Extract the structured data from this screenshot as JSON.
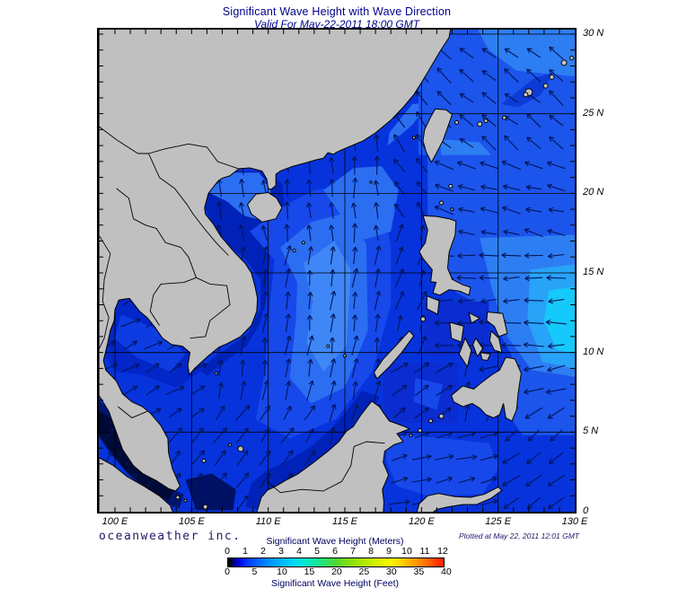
{
  "header": {
    "title": "Significant Wave Height with Wave Direction",
    "subtitle": "Valid For May-22-2011 18:00 GMT"
  },
  "footer": {
    "brand": "oceanweather inc.",
    "plotted": "Plotted at May 22, 2011 12:01 GMT"
  },
  "map": {
    "lat_labels": [
      {
        "value": "30 N",
        "lat": 30
      },
      {
        "value": "25 N",
        "lat": 25
      },
      {
        "value": "20 N",
        "lat": 20
      },
      {
        "value": "15 N",
        "lat": 15
      },
      {
        "value": "10 N",
        "lat": 10
      },
      {
        "value": "5 N",
        "lat": 5
      },
      {
        "value": "0",
        "lat": 0
      }
    ],
    "lon_labels": [
      {
        "value": "100 E",
        "lon": 100
      },
      {
        "value": "105 E",
        "lon": 105
      },
      {
        "value": "110 E",
        "lon": 110
      },
      {
        "value": "115 E",
        "lon": 115
      },
      {
        "value": "120 E",
        "lon": 120
      },
      {
        "value": "125 E",
        "lon": 125
      },
      {
        "value": "130 E",
        "lon": 130
      }
    ],
    "colors": {
      "land": "#c0c0c0",
      "coastline": "#000000",
      "ocean_base": "#0733dc",
      "arrow": "#001559",
      "grid": "#000000"
    },
    "flow_regions": [
      {
        "lon0": 105.3,
        "lon1": 110.2,
        "lat0": 17.2,
        "lat1": 21.8,
        "dir": 352
      },
      {
        "lon0": 117.4,
        "lon1": 121.2,
        "lat0": 17.8,
        "lat1": 21.6,
        "dir": 330
      },
      {
        "lon0": 109.5,
        "lon1": 117.4,
        "lat0": 17.2,
        "lat1": 23.2,
        "dir": 358
      },
      {
        "lon0": 116.0,
        "lon1": 120.8,
        "lat0": 21.6,
        "lat1": 26.0,
        "dir": 322
      },
      {
        "lon0": 119.5,
        "lon1": 130.5,
        "lat0": 22.6,
        "lat1": 30.4,
        "dir": 310
      },
      {
        "lon0": 120.5,
        "lon1": 130.5,
        "lat0": 16.6,
        "lat1": 22.6,
        "dir": 286
      },
      {
        "lon0": 120.8,
        "lon1": 130.5,
        "lat0": 9.6,
        "lat1": 16.6,
        "dir": 268
      },
      {
        "lon0": 124.3,
        "lon1": 130.5,
        "lat0": 6.8,
        "lat1": 9.6,
        "dir": 252
      },
      {
        "lon0": 124.8,
        "lon1": 130.5,
        "lat0": 0.0,
        "lat1": 6.8,
        "dir": 232
      },
      {
        "lon0": 117.3,
        "lon1": 122.6,
        "lat0": 5.4,
        "lat1": 9.6,
        "dir": 55
      },
      {
        "lon0": 117.3,
        "lon1": 124.8,
        "lat0": 0.0,
        "lat1": 5.4,
        "dir": 75
      },
      {
        "lon0": 117.4,
        "lon1": 120.8,
        "lat0": 11.8,
        "lat1": 17.8,
        "dir": 18
      },
      {
        "lon0": 120.8,
        "lon1": 125.5,
        "lat0": 9.6,
        "lat1": 13.2,
        "dir": 45
      },
      {
        "lon0": 98.9,
        "lon1": 105.6,
        "lat0": 5.6,
        "lat1": 13.6,
        "dir": 62
      },
      {
        "lon0": 98.9,
        "lon1": 103.9,
        "lat0": 0.0,
        "lat1": 5.6,
        "dir": 40
      },
      {
        "lon0": 103.9,
        "lon1": 113.3,
        "lat0": 0.0,
        "lat1": 7.2,
        "dir": 35
      },
      {
        "lon0": 108.0,
        "lon1": 118.0,
        "lat0": 7.2,
        "lat1": 17.2,
        "dir": 8
      }
    ],
    "default_dir": 15
  },
  "legend": {
    "meters_label": "Significant Wave Height (Meters)",
    "feet_label": "Significant Wave Height (Feet)",
    "meters_ticks": [
      0,
      1,
      2,
      3,
      4,
      5,
      6,
      7,
      8,
      9,
      10,
      11,
      12
    ],
    "feet_ticks": [
      0,
      5,
      10,
      15,
      20,
      25,
      30,
      35,
      40
    ],
    "meters_max": 12,
    "scale_colors": [
      "#000000",
      "#0000e0",
      "#0066ff",
      "#00b8ff",
      "#00e8d8",
      "#30e060",
      "#a8e800",
      "#f8f800",
      "#ffd000",
      "#ffa000",
      "#ff7000",
      "#ff3800",
      "#ff2000"
    ]
  }
}
